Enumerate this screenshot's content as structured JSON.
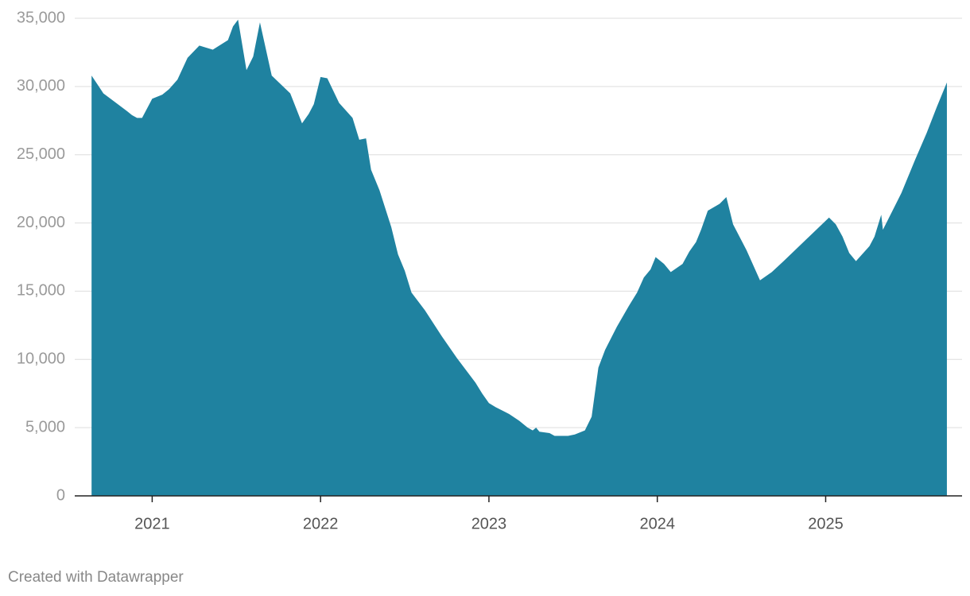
{
  "chart_data": {
    "type": "area",
    "color": "#1f82a0",
    "grid": true,
    "footer": "Created with Datawrapper",
    "x": [
      2020.64,
      2020.71,
      2020.85,
      2020.88,
      2020.91,
      2020.94,
      2021.0,
      2021.06,
      2021.1,
      2021.15,
      2021.21,
      2021.28,
      2021.36,
      2021.45,
      2021.48,
      2021.51,
      2021.56,
      2021.6,
      2021.64,
      2021.71,
      2021.82,
      2021.89,
      2021.93,
      2021.96,
      2022.0,
      2022.04,
      2022.11,
      2022.19,
      2022.23,
      2022.27,
      2022.3,
      2022.35,
      2022.42,
      2022.46,
      2022.5,
      2022.54,
      2022.62,
      2022.72,
      2022.81,
      2022.92,
      2022.96,
      2023.0,
      2023.04,
      2023.12,
      2023.18,
      2023.23,
      2023.26,
      2023.28,
      2023.3,
      2023.36,
      2023.39,
      2023.47,
      2023.51,
      2023.57,
      2023.61,
      2023.65,
      2023.69,
      2023.76,
      2023.83,
      2023.88,
      2023.92,
      2023.96,
      2023.99,
      2024.04,
      2024.08,
      2024.15,
      2024.19,
      2024.23,
      2024.26,
      2024.3,
      2024.37,
      2024.41,
      2024.45,
      2024.53,
      2024.61,
      2024.68,
      2024.75,
      2025.02,
      2025.06,
      2025.1,
      2025.14,
      2025.18,
      2025.26,
      2025.29,
      2025.33,
      2025.34,
      2025.45,
      2025.53,
      2025.6,
      2025.66,
      2025.72
    ],
    "values": [
      30800,
      29500,
      28200,
      27900,
      27700,
      27700,
      29100,
      29400,
      29800,
      30500,
      32100,
      33000,
      32700,
      33400,
      34400,
      34900,
      31200,
      32200,
      34700,
      30800,
      29500,
      27300,
      28000,
      28700,
      30700,
      30600,
      28800,
      27700,
      26100,
      26200,
      23900,
      22400,
      19700,
      17700,
      16500,
      14900,
      13600,
      11700,
      10100,
      8300,
      7500,
      6800,
      6500,
      6000,
      5500,
      5000,
      4800,
      5000,
      4700,
      4600,
      4400,
      4400,
      4500,
      4800,
      5800,
      9400,
      10700,
      12400,
      13900,
      14900,
      16000,
      16600,
      17500,
      17000,
      16400,
      17000,
      17900,
      18600,
      19500,
      20900,
      21400,
      21900,
      19900,
      18000,
      15800,
      16400,
      17200,
      20400,
      19900,
      19000,
      17800,
      17200,
      18300,
      19000,
      20600,
      19500,
      22200,
      24600,
      26600,
      28500,
      30300
    ],
    "xlim": [
      2020.54,
      2025.81
    ],
    "xticks": [
      2021,
      2022,
      2023,
      2024,
      2025
    ],
    "ylim": [
      0,
      35000
    ],
    "yticks": [
      0,
      {
        "value": 5000,
        "label": "5,000"
      },
      {
        "value": 10000,
        "label": "10,000"
      },
      {
        "value": 15000,
        "label": "15,000"
      },
      {
        "value": 20000,
        "label": "20,000"
      },
      {
        "value": 25000,
        "label": "25,000"
      },
      {
        "value": 30000,
        "label": "30,000"
      },
      {
        "value": 35000,
        "label": "35,000"
      }
    ]
  }
}
